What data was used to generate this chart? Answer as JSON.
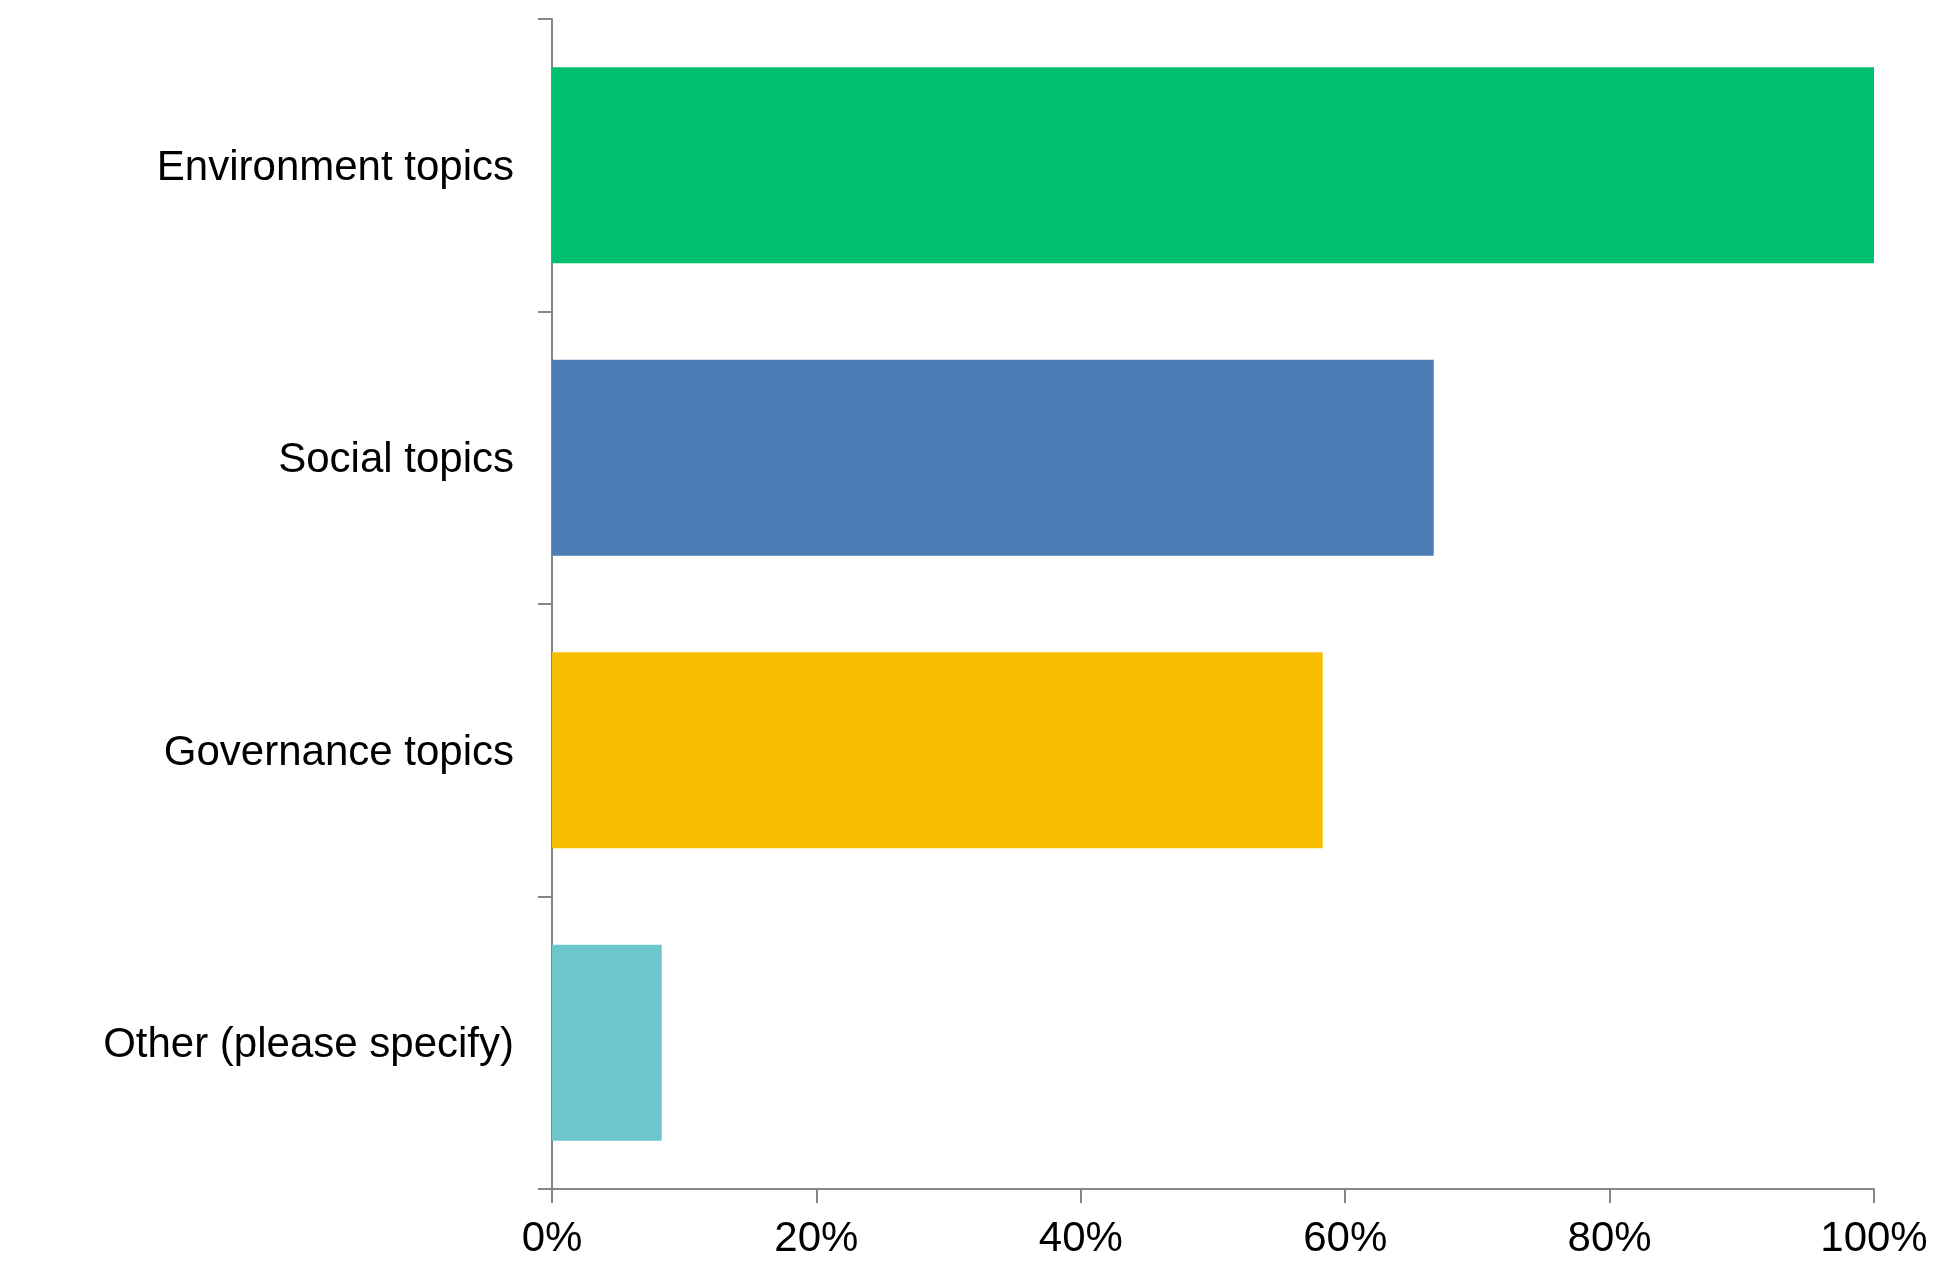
{
  "chart_data": {
    "type": "bar",
    "orientation": "horizontal",
    "categories": [
      "Environment topics",
      "Social topics",
      "Governance topics",
      "Other (please specify)"
    ],
    "values": [
      100,
      66.7,
      58.3,
      8.3
    ],
    "colors": [
      "#00bf6f",
      "#4e7cb5",
      "#f7be00",
      "#6cc6cc"
    ],
    "xlim": [
      0,
      100
    ],
    "xticks": [
      {
        "value": 0,
        "label": "0%"
      },
      {
        "value": 20,
        "label": "20%"
      },
      {
        "value": 40,
        "label": "40%"
      },
      {
        "value": 60,
        "label": "60%"
      },
      {
        "value": 80,
        "label": "80%"
      },
      {
        "value": 100,
        "label": "100%"
      }
    ]
  }
}
